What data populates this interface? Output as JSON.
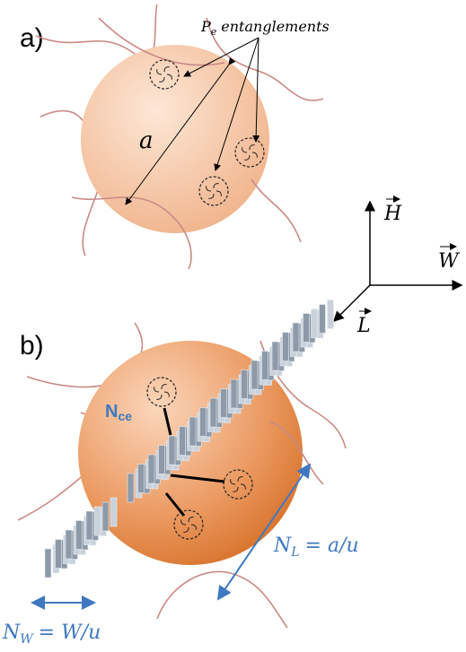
{
  "panel_a": {
    "label": "a)",
    "annotation": {
      "symbol": "P",
      "subscript": "e",
      "text": "entanglements"
    },
    "size_label": "a"
  },
  "axes": {
    "h": "H",
    "w": "W",
    "l": "L"
  },
  "panel_b": {
    "label": "b)",
    "nce": {
      "symbol": "N",
      "subscript": "ce"
    },
    "nl": {
      "symbol": "N",
      "subscript": "L",
      "text": "= a/u"
    },
    "nw": {
      "symbol": "N",
      "subscript": "W",
      "text": "= W/u"
    }
  }
}
